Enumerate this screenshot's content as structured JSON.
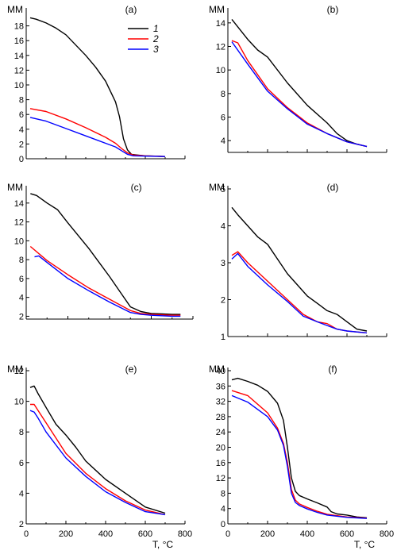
{
  "chart_data": [
    {
      "type": "line",
      "panel": "(a)",
      "ylabel": "MM",
      "xlabel": "",
      "xlim": [
        0,
        800
      ],
      "ylim": [
        0,
        20
      ],
      "yticks": [
        0,
        2,
        4,
        6,
        8,
        10,
        12,
        14,
        16,
        18
      ],
      "xticks": [],
      "legend": {
        "placement": "top-center",
        "entries": [
          "1",
          "2",
          "3"
        ]
      },
      "series": [
        {
          "name": "1",
          "color": "#000000",
          "x": [
            20,
            50,
            100,
            150,
            200,
            250,
            300,
            350,
            400,
            450,
            470,
            490,
            510,
            530,
            560,
            600,
            650,
            700
          ],
          "values": [
            19.1,
            18.9,
            18.4,
            17.7,
            16.8,
            15.4,
            14.0,
            12.4,
            10.5,
            7.7,
            5.7,
            2.7,
            1.2,
            0.6,
            0.5,
            0.4,
            0.35,
            0.3
          ]
        },
        {
          "name": "2",
          "color": "#ff0000",
          "x": [
            20,
            100,
            200,
            300,
            400,
            450,
            480,
            510,
            540,
            600,
            700
          ],
          "values": [
            6.8,
            6.4,
            5.4,
            4.2,
            2.9,
            2.1,
            1.4,
            0.8,
            0.5,
            0.4,
            0.3
          ]
        },
        {
          "name": "3",
          "color": "#0000ff",
          "x": [
            20,
            100,
            200,
            300,
            400,
            450,
            480,
            510,
            540,
            600,
            700
          ],
          "values": [
            5.6,
            5.1,
            4.1,
            3.1,
            2.1,
            1.6,
            1.1,
            0.6,
            0.4,
            0.35,
            0.3
          ]
        }
      ]
    },
    {
      "type": "line",
      "panel": "(b)",
      "ylabel": "MM",
      "xlabel": "",
      "xlim": [
        0,
        800
      ],
      "ylim": [
        3,
        15
      ],
      "yticks": [
        4,
        6,
        8,
        10,
        12,
        14
      ],
      "xticks": [],
      "series": [
        {
          "name": "1",
          "color": "#000000",
          "x": [
            20,
            100,
            150,
            200,
            300,
            400,
            500,
            550,
            600,
            650,
            700
          ],
          "values": [
            14.3,
            12.6,
            11.7,
            11.1,
            8.9,
            7.0,
            5.5,
            4.6,
            4.0,
            3.7,
            3.5
          ]
        },
        {
          "name": "2",
          "color": "#ff0000",
          "x": [
            20,
            50,
            100,
            200,
            300,
            400,
            500,
            600,
            700
          ],
          "values": [
            12.5,
            12.3,
            10.8,
            8.4,
            6.8,
            5.5,
            4.6,
            3.9,
            3.5
          ]
        },
        {
          "name": "3",
          "color": "#0000ff",
          "x": [
            20,
            100,
            200,
            300,
            400,
            500,
            600,
            700
          ],
          "values": [
            12.4,
            10.5,
            8.2,
            6.7,
            5.4,
            4.6,
            3.9,
            3.5
          ]
        }
      ]
    },
    {
      "type": "line",
      "panel": "(c)",
      "ylabel": "MM",
      "xlabel": "",
      "xlim": [
        0,
        800
      ],
      "ylim": [
        1.7,
        15.5
      ],
      "yticks": [
        2,
        4,
        6,
        8,
        10,
        12,
        14
      ],
      "xticks": [],
      "series": [
        {
          "name": "1",
          "color": "#000000",
          "x": [
            20,
            50,
            100,
            150,
            200,
            300,
            400,
            450,
            500,
            550,
            600,
            650,
            700,
            740
          ],
          "values": [
            15.0,
            14.8,
            14.0,
            13.3,
            11.9,
            9.2,
            6.2,
            4.6,
            3.0,
            2.5,
            2.3,
            2.25,
            2.2,
            2.2
          ]
        },
        {
          "name": "2",
          "color": "#ff0000",
          "x": [
            20,
            100,
            200,
            300,
            400,
            500,
            550,
            600,
            700,
            740
          ],
          "values": [
            9.4,
            7.9,
            6.4,
            5.0,
            3.8,
            2.6,
            2.3,
            2.2,
            2.1,
            2.1
          ]
        },
        {
          "name": "3",
          "color": "#0000ff",
          "x": [
            40,
            60,
            100,
            200,
            300,
            400,
            500,
            550,
            600,
            700,
            740
          ],
          "values": [
            8.3,
            8.4,
            7.7,
            6.0,
            4.7,
            3.5,
            2.4,
            2.2,
            2.1,
            2.0,
            2.0
          ]
        }
      ]
    },
    {
      "type": "line",
      "panel": "(d)",
      "ylabel": "MM",
      "xlabel": "",
      "xlim": [
        0,
        800
      ],
      "ylim": [
        1,
        5
      ],
      "yticks": [
        1,
        2,
        3,
        4,
        5
      ],
      "xticks": [],
      "series": [
        {
          "name": "1",
          "color": "#000000",
          "x": [
            20,
            50,
            100,
            150,
            200,
            250,
            300,
            350,
            400,
            450,
            500,
            550,
            600,
            650,
            700
          ],
          "values": [
            4.5,
            4.3,
            4.0,
            3.7,
            3.5,
            3.1,
            2.7,
            2.4,
            2.1,
            1.9,
            1.7,
            1.6,
            1.4,
            1.2,
            1.15
          ]
        },
        {
          "name": "2",
          "color": "#ff0000",
          "x": [
            20,
            50,
            100,
            200,
            300,
            380,
            450,
            500,
            550,
            600,
            700
          ],
          "values": [
            3.2,
            3.3,
            3.0,
            2.5,
            2.0,
            1.6,
            1.4,
            1.35,
            1.2,
            1.15,
            1.1
          ]
        },
        {
          "name": "3",
          "color": "#0000ff",
          "x": [
            20,
            50,
            100,
            200,
            300,
            380,
            450,
            500,
            550,
            600,
            700
          ],
          "values": [
            3.1,
            3.25,
            2.9,
            2.4,
            1.95,
            1.55,
            1.4,
            1.3,
            1.2,
            1.15,
            1.1
          ]
        }
      ]
    },
    {
      "type": "line",
      "panel": "(e)",
      "ylabel": "MM",
      "xlabel": "T, °C",
      "xlim": [
        0,
        800
      ],
      "ylim": [
        2,
        12
      ],
      "yticks": [
        2,
        4,
        6,
        8,
        10,
        12
      ],
      "xticks": [
        0,
        200,
        400,
        600,
        800
      ],
      "series": [
        {
          "name": "1",
          "color": "#000000",
          "x": [
            20,
            40,
            60,
            100,
            150,
            200,
            250,
            300,
            400,
            500,
            600,
            700
          ],
          "values": [
            10.9,
            11.0,
            10.5,
            9.6,
            8.5,
            7.8,
            7.0,
            6.1,
            4.9,
            4.0,
            3.1,
            2.7
          ]
        },
        {
          "name": "2",
          "color": "#ff0000",
          "x": [
            20,
            40,
            60,
            100,
            200,
            300,
            400,
            500,
            600,
            700
          ],
          "values": [
            9.8,
            9.8,
            9.4,
            8.6,
            6.6,
            5.3,
            4.3,
            3.5,
            2.9,
            2.6
          ]
        },
        {
          "name": "3",
          "color": "#0000ff",
          "x": [
            20,
            40,
            60,
            100,
            200,
            300,
            400,
            500,
            600,
            700
          ],
          "values": [
            9.4,
            9.3,
            8.9,
            8.0,
            6.3,
            5.1,
            4.1,
            3.4,
            2.8,
            2.6
          ]
        }
      ]
    },
    {
      "type": "line",
      "panel": "(f)",
      "ylabel": "MM",
      "xlabel": "T, °C",
      "xlim": [
        0,
        800
      ],
      "ylim": [
        0,
        40
      ],
      "yticks": [
        0,
        4,
        8,
        12,
        16,
        20,
        24,
        28,
        32,
        36,
        40
      ],
      "xticks": [
        0,
        200,
        400,
        600,
        800
      ],
      "series": [
        {
          "name": "1",
          "color": "#000000",
          "x": [
            20,
            50,
            100,
            150,
            200,
            250,
            280,
            300,
            320,
            340,
            360,
            400,
            450,
            500,
            520,
            550,
            600,
            650,
            700
          ],
          "values": [
            37.6,
            38.0,
            37.2,
            36.2,
            34.6,
            31.5,
            27.0,
            20.0,
            12.0,
            8.5,
            7.4,
            6.5,
            5.5,
            4.4,
            3.2,
            2.6,
            2.3,
            1.8,
            1.6
          ]
        },
        {
          "name": "2",
          "color": "#ff0000",
          "x": [
            20,
            100,
            200,
            250,
            280,
            300,
            320,
            340,
            360,
            400,
            450,
            500,
            600,
            700
          ],
          "values": [
            34.8,
            33.5,
            29.0,
            25.0,
            21.0,
            16.0,
            9.0,
            6.2,
            5.2,
            4.3,
            3.3,
            2.5,
            1.8,
            1.5
          ]
        },
        {
          "name": "3",
          "color": "#0000ff",
          "x": [
            20,
            100,
            200,
            250,
            280,
            300,
            320,
            340,
            360,
            400,
            450,
            500,
            600,
            700
          ],
          "values": [
            33.5,
            31.8,
            28.0,
            24.5,
            20.5,
            15.0,
            8.0,
            5.6,
            4.8,
            3.9,
            3.0,
            2.3,
            1.7,
            1.4
          ]
        }
      ]
    }
  ]
}
